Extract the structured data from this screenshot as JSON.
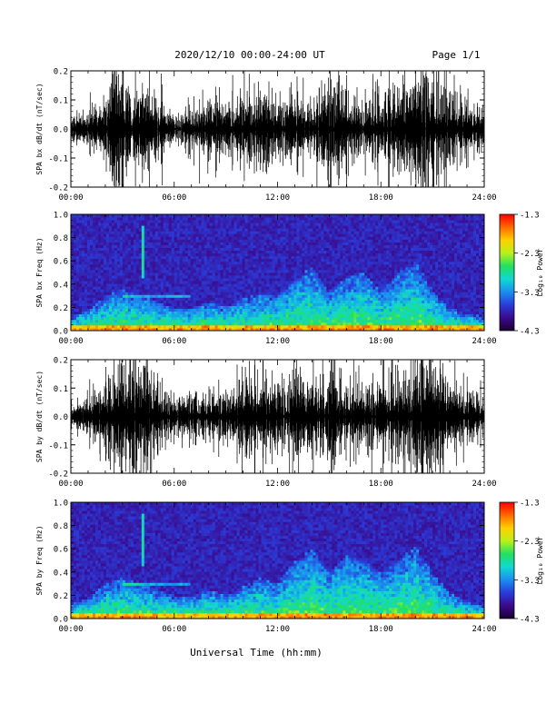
{
  "header": {
    "title": "2020/12/10  00:00-24:00 UT",
    "page": "Page 1/1"
  },
  "footer": {
    "xlabel": "Universal Time (hh:mm)"
  },
  "colors": {
    "trace": "#000000",
    "background": "#ffffff",
    "colormap": [
      "#1a0033",
      "#3b0a8c",
      "#2a3cd9",
      "#1a8ff0",
      "#12d8d0",
      "#22e060",
      "#b8f01a",
      "#ffd000",
      "#ff6a00",
      "#ff0000"
    ]
  },
  "chart_data": [
    {
      "type": "line",
      "ylabel": "SPA bx dB/dt (nT/sec)",
      "xlim": [
        "00:00",
        "24:00"
      ],
      "ylim": [
        -0.2,
        0.2
      ],
      "yticks": [
        "0.2",
        "0.1",
        "0.0",
        "-0.1",
        "-0.2"
      ],
      "xticks": [
        "00:00",
        "06:00",
        "12:00",
        "18:00",
        "24:00"
      ],
      "envelope_hours": [
        0,
        1,
        2,
        3,
        4,
        5,
        6,
        7,
        8,
        9,
        10,
        11,
        12,
        13,
        14,
        15,
        16,
        17,
        18,
        19,
        20,
        21,
        22,
        23,
        24
      ],
      "envelope_amplitude": [
        0.04,
        0.06,
        0.12,
        0.2,
        0.16,
        0.12,
        0.06,
        0.06,
        0.1,
        0.08,
        0.13,
        0.15,
        0.1,
        0.12,
        0.08,
        0.18,
        0.1,
        0.08,
        0.12,
        0.16,
        0.2,
        0.2,
        0.12,
        0.08,
        0.06
      ]
    },
    {
      "type": "heatmap",
      "ylabel": "SPA bx Freq (Hz)",
      "xlim": [
        "00:00",
        "24:00"
      ],
      "ylim": [
        0.0,
        1.0
      ],
      "yticks": [
        "1.0",
        "0.8",
        "0.6",
        "0.4",
        "0.2",
        "0.0"
      ],
      "xticks": [
        "00:00",
        "06:00",
        "12:00",
        "18:00",
        "24:00"
      ],
      "colorbar": {
        "label": "Log₁₀ Power",
        "min": -4.3,
        "max": -1.3,
        "ticks": [
          "-1.3",
          "-2.3",
          "-3.3",
          "-4.3"
        ]
      },
      "activity_hours": [
        0,
        1,
        2,
        3,
        4,
        5,
        6,
        7,
        8,
        9,
        10,
        11,
        12,
        13,
        14,
        15,
        16,
        17,
        18,
        19,
        20,
        21,
        22,
        23,
        24
      ],
      "activity_top_freq": [
        0.12,
        0.18,
        0.3,
        0.35,
        0.3,
        0.25,
        0.2,
        0.2,
        0.25,
        0.2,
        0.28,
        0.32,
        0.3,
        0.45,
        0.55,
        0.35,
        0.45,
        0.5,
        0.35,
        0.5,
        0.6,
        0.35,
        0.2,
        0.15,
        0.12
      ]
    },
    {
      "type": "line",
      "ylabel": "SPA by dB/dt (nT/sec)",
      "xlim": [
        "00:00",
        "24:00"
      ],
      "ylim": [
        -0.2,
        0.2
      ],
      "yticks": [
        "0.2",
        "0.1",
        "0.0",
        "-0.1",
        "-0.2"
      ],
      "xticks": [
        "00:00",
        "06:00",
        "12:00",
        "18:00",
        "24:00"
      ],
      "envelope_hours": [
        0,
        1,
        2,
        3,
        4,
        5,
        6,
        7,
        8,
        9,
        10,
        11,
        12,
        13,
        14,
        15,
        16,
        17,
        18,
        19,
        20,
        21,
        22,
        23,
        24
      ],
      "envelope_amplitude": [
        0.05,
        0.06,
        0.12,
        0.2,
        0.18,
        0.14,
        0.07,
        0.06,
        0.1,
        0.09,
        0.14,
        0.16,
        0.12,
        0.14,
        0.12,
        0.2,
        0.12,
        0.1,
        0.14,
        0.18,
        0.2,
        0.2,
        0.14,
        0.1,
        0.07
      ]
    },
    {
      "type": "heatmap",
      "ylabel": "SPA by Freq (Hz)",
      "xlim": [
        "00:00",
        "24:00"
      ],
      "ylim": [
        0.0,
        1.0
      ],
      "yticks": [
        "1.0",
        "0.8",
        "0.6",
        "0.4",
        "0.2",
        "0.0"
      ],
      "xticks": [
        "00:00",
        "06:00",
        "12:00",
        "18:00",
        "24:00"
      ],
      "colorbar": {
        "label": "Log₁₀ Power",
        "min": -4.3,
        "max": -1.3,
        "ticks": [
          "-1.3",
          "-2.3",
          "-3.3",
          "-4.3"
        ]
      },
      "activity_hours": [
        0,
        1,
        2,
        3,
        4,
        5,
        6,
        7,
        8,
        9,
        10,
        11,
        12,
        13,
        14,
        15,
        16,
        17,
        18,
        19,
        20,
        21,
        22,
        23,
        24
      ],
      "activity_top_freq": [
        0.12,
        0.18,
        0.3,
        0.35,
        0.3,
        0.25,
        0.2,
        0.2,
        0.25,
        0.2,
        0.28,
        0.35,
        0.3,
        0.5,
        0.6,
        0.4,
        0.55,
        0.5,
        0.4,
        0.5,
        0.62,
        0.4,
        0.22,
        0.15,
        0.12
      ]
    }
  ]
}
